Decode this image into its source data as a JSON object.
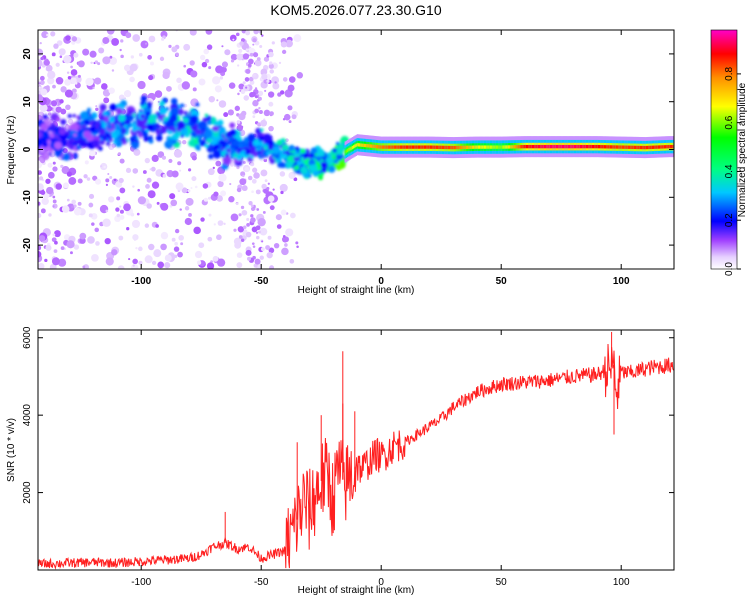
{
  "figure": {
    "title": "KOM5.2026.077.23.30.G10"
  },
  "chart_data": [
    {
      "type": "heatmap",
      "xlabel": "Height of straight line (km)",
      "ylabel": "Frequency (Hz)",
      "xlim": [
        -143,
        122
      ],
      "ylim": [
        -25,
        25
      ],
      "xticks": [
        -100,
        -50,
        0,
        50,
        100
      ],
      "yticks": [
        20,
        10,
        0,
        -10,
        -20
      ],
      "colorbar": {
        "label": "Normalized spectral amplitude",
        "range": [
          0,
          0.98
        ],
        "ticks": [
          0.0,
          0.2,
          0.4,
          0.6,
          0.8
        ],
        "colors": [
          "#ffffff",
          "#d9b8ff",
          "#8000ff",
          "#0000ff",
          "#00ffff",
          "#00ff00",
          "#ffff00",
          "#ff8000",
          "#ff0000",
          "#ff00c0"
        ]
      },
      "ridge": {
        "x": [
          -140,
          -120,
          -105,
          -90,
          -80,
          -70,
          -60,
          -50,
          -40,
          -30,
          -20,
          -10,
          0,
          10,
          20,
          30,
          40,
          50,
          60,
          70,
          80,
          90,
          100,
          110,
          120
        ],
        "y": [
          2,
          4,
          5,
          6,
          5,
          3,
          0,
          1,
          -1,
          -3,
          -2,
          1,
          0.5,
          0.5,
          0.5,
          0.4,
          0.5,
          0.5,
          0.6,
          0.6,
          0.6,
          0.6,
          0.5,
          0.4,
          0.6
        ],
        "amplitude": [
          0.2,
          0.28,
          0.33,
          0.36,
          0.38,
          0.35,
          0.32,
          0.34,
          0.38,
          0.42,
          0.5,
          0.7,
          0.82,
          0.88,
          0.88,
          0.85,
          0.7,
          0.62,
          0.9,
          0.95,
          0.95,
          0.9,
          0.86,
          0.88,
          0.88
        ]
      }
    },
    {
      "type": "line",
      "xlabel": "Height of straight line (km)",
      "ylabel": "SNR (10 * v/v)",
      "xlim": [
        -143,
        122
      ],
      "ylim": [
        0,
        6200
      ],
      "xticks": [
        -100,
        -50,
        0,
        50,
        100
      ],
      "yticks": [
        2000,
        4000,
        6000
      ],
      "series": [
        {
          "color": "#ff2020",
          "x": [
            -143,
            -130,
            -120,
            -110,
            -100,
            -90,
            -80,
            -75,
            -70,
            -65,
            -60,
            -55,
            -50,
            -45,
            -40,
            -38,
            -35,
            -32,
            -30,
            -27,
            -25,
            -22,
            -20,
            -18,
            -15,
            -12,
            -10,
            -8,
            -5,
            -2,
            0,
            5,
            10,
            15,
            20,
            25,
            30,
            35,
            40,
            50,
            60,
            70,
            80,
            90,
            95,
            97,
            98,
            100,
            105,
            110,
            115,
            122
          ],
          "y": [
            150,
            180,
            200,
            180,
            220,
            260,
            300,
            400,
            600,
            700,
            550,
            600,
            300,
            400,
            500,
            800,
            1300,
            1800,
            1500,
            2000,
            2300,
            2400,
            1800,
            2600,
            2200,
            2500,
            2700,
            2600,
            2800,
            3000,
            2900,
            3200,
            3300,
            3500,
            3700,
            3900,
            4200,
            4400,
            4600,
            4800,
            4850,
            4900,
            5000,
            5050,
            5200,
            5300,
            4500,
            5100,
            5100,
            5200,
            5250,
            5300
          ]
        }
      ],
      "spikes": [
        {
          "x": -65,
          "y": 1500
        },
        {
          "x": -35,
          "y": 3300
        },
        {
          "x": -25,
          "y": 4000
        },
        {
          "x": -16,
          "y": 4300
        },
        {
          "x": -16,
          "y": 5650
        },
        {
          "x": -11,
          "y": 4100
        },
        {
          "x": 96,
          "y": 6150
        },
        {
          "x": 97,
          "y": 3500
        }
      ]
    }
  ]
}
